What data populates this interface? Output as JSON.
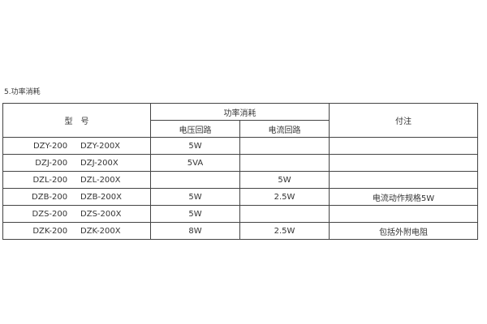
{
  "title": "5.功率消耗",
  "header": {
    "model": "型　号",
    "power": "功率消耗",
    "voltage": "电压回路",
    "current": "电流回路",
    "note": "付注"
  },
  "rows": [
    {
      "model": "DZY-200     DZY-200X",
      "voltage": "5W",
      "current": "",
      "note": ""
    },
    {
      "model": "DZJ-200     DZJ-200X",
      "voltage": "5VA",
      "current": "",
      "note": ""
    },
    {
      "model": "DZL-200     DZL-200X",
      "voltage": "",
      "current": "5W",
      "note": ""
    },
    {
      "model": "DZB-200     DZB-200X",
      "voltage": "5W",
      "current": "2.5W",
      "note": "电流动作规格5W"
    },
    {
      "model": "DZS-200     DZS-200X",
      "voltage": "5W",
      "current": "",
      "note": ""
    },
    {
      "model": "DZK-200     DZK-200X",
      "voltage": "8W",
      "current": "2.5W",
      "note": "包括外附电阻"
    }
  ]
}
